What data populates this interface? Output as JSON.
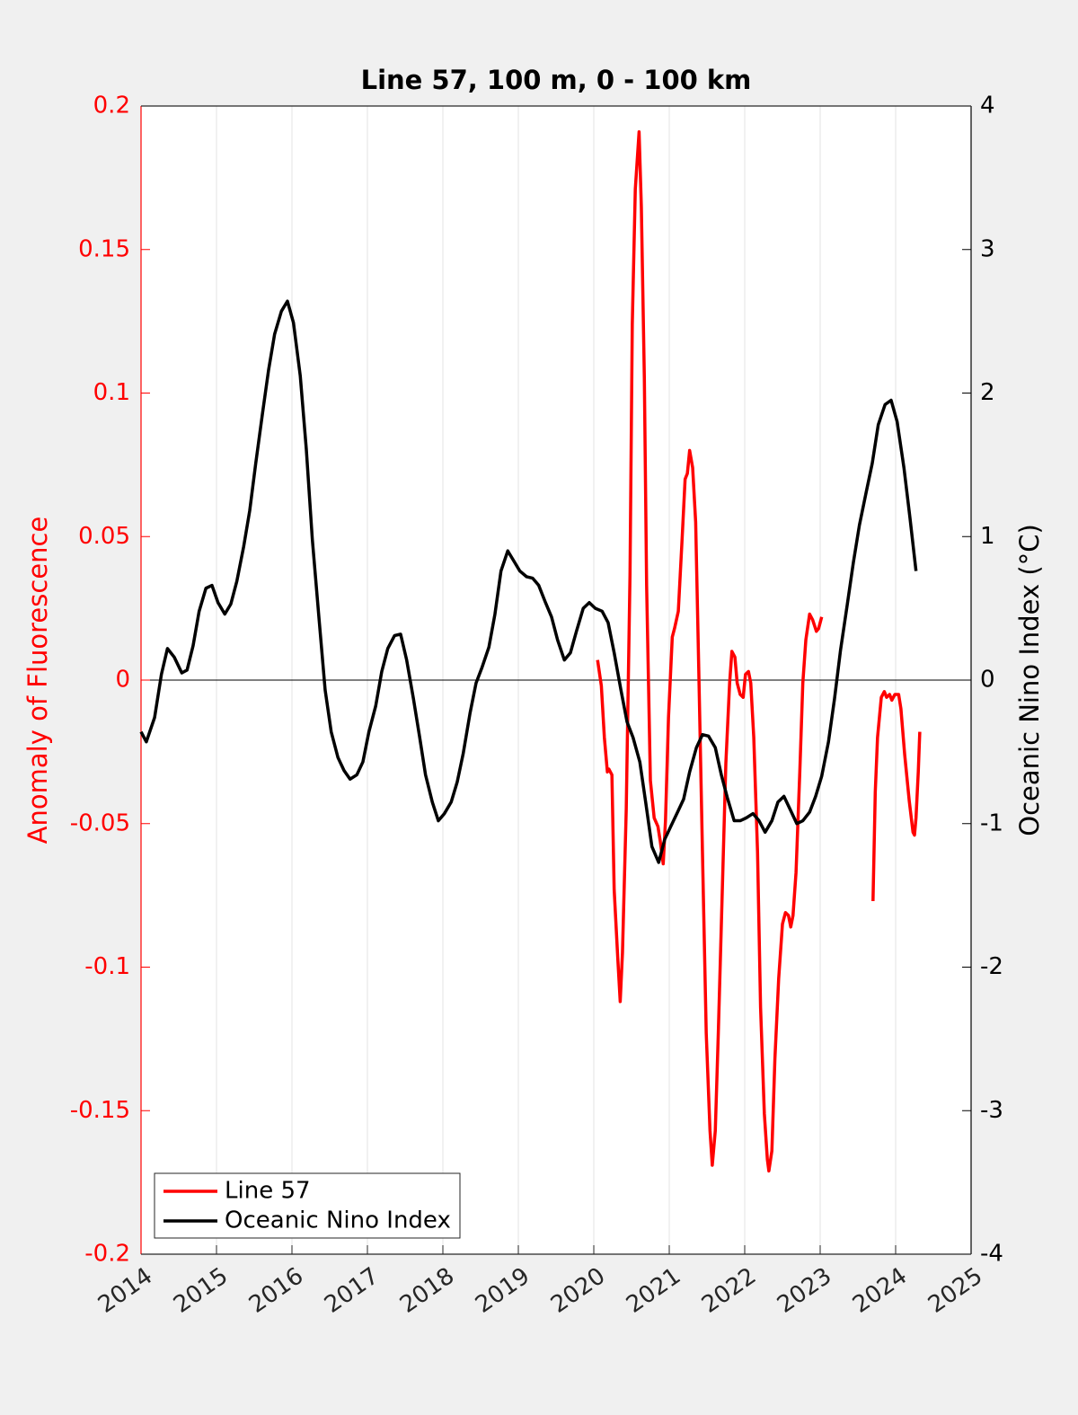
{
  "chart_data": {
    "type": "line",
    "title": "Line 57, 100 m, 0 - 100 km",
    "ylabel": "Anomaly of Fluorescence",
    "y2label": "Oceanic Nino Index (°C)",
    "xlim": [
      2014,
      2025
    ],
    "xticks": [
      2014,
      2015,
      2016,
      2017,
      2018,
      2019,
      2020,
      2021,
      2022,
      2023,
      2024,
      2025
    ],
    "ylim": [
      -0.2,
      0.2
    ],
    "yticks": [
      -0.2,
      -0.15,
      -0.1,
      -0.05,
      0,
      0.05,
      0.1,
      0.15,
      0.2
    ],
    "y2lim": [
      -4,
      4
    ],
    "y2ticks": [
      -4,
      -3,
      -2,
      -1,
      0,
      1,
      2,
      3,
      4
    ],
    "ycolor": "#ff0000",
    "y2color": "#000000",
    "reference_line": 0,
    "xgrid": true,
    "legend": "lower left",
    "series": [
      {
        "name": "Line 57",
        "color": "#ff0000",
        "x": [
          2020.05,
          2020.1,
          2020.14,
          2020.18,
          2020.2,
          2020.24,
          2020.27,
          2020.32,
          2020.35,
          2020.38,
          2020.43,
          2020.48,
          2020.51,
          2020.55,
          2020.6,
          2020.63,
          2020.67,
          2020.7,
          2020.75,
          2020.8,
          2020.85,
          2020.88,
          2020.92,
          2020.95,
          2020.99,
          2021.04,
          2021.07,
          2021.12,
          2021.17,
          2021.21,
          2021.24,
          2021.27,
          2021.31,
          2021.35,
          2021.39,
          2021.44,
          2021.49,
          2021.54,
          2021.57,
          2021.61,
          2021.65,
          2021.7,
          2021.75,
          2021.8,
          2021.83,
          2021.87,
          2021.9,
          2021.94,
          2021.98,
          2022.01,
          2022.05,
          2022.08,
          2022.12,
          2022.17,
          2022.21,
          2022.26,
          2022.3,
          2022.32,
          2022.36,
          2022.4,
          2022.45,
          2022.5,
          2022.54,
          2022.58,
          2022.61,
          2022.64,
          2022.68,
          2022.73,
          2022.77,
          2022.81,
          2022.86,
          2022.9,
          2022.95,
          2022.98,
          2023.02,
          null,
          2023.7,
          2023.73,
          2023.76,
          2023.81,
          2023.85,
          2023.88,
          2023.92,
          2023.95,
          2023.99,
          2024.04,
          2024.07,
          2024.12,
          2024.18,
          2024.23,
          2024.25,
          2024.27,
          2024.3,
          2024.32
        ],
        "values": [
          0.007,
          -0.002,
          -0.02,
          -0.032,
          -0.031,
          -0.033,
          -0.073,
          -0.098,
          -0.112,
          -0.095,
          -0.045,
          0.037,
          0.124,
          0.171,
          0.191,
          0.165,
          0.105,
          0.033,
          -0.035,
          -0.048,
          -0.051,
          -0.056,
          -0.064,
          -0.049,
          -0.013,
          0.015,
          0.018,
          0.024,
          0.049,
          0.07,
          0.072,
          0.08,
          0.074,
          0.055,
          0.005,
          -0.06,
          -0.123,
          -0.157,
          -0.169,
          -0.157,
          -0.123,
          -0.076,
          -0.029,
          -0.001,
          0.01,
          0.008,
          -0.001,
          -0.005,
          -0.006,
          0.002,
          0.003,
          -0.001,
          -0.02,
          -0.06,
          -0.114,
          -0.151,
          -0.167,
          -0.171,
          -0.164,
          -0.132,
          -0.104,
          -0.085,
          -0.081,
          -0.082,
          -0.086,
          -0.082,
          -0.067,
          -0.032,
          -0.001,
          0.014,
          0.023,
          0.021,
          0.017,
          0.018,
          0.022,
          null,
          -0.077,
          -0.039,
          -0.02,
          -0.006,
          -0.004,
          -0.006,
          -0.005,
          -0.007,
          -0.005,
          -0.005,
          -0.01,
          -0.026,
          -0.042,
          -0.053,
          -0.054,
          -0.048,
          -0.032,
          -0.018
        ]
      },
      {
        "name": "Oceanic Nino Index",
        "color": "#000000",
        "axis": "y2",
        "x": [
          2014.0,
          2014.07,
          2014.18,
          2014.27,
          2014.35,
          2014.44,
          2014.54,
          2014.61,
          2014.69,
          2014.77,
          2014.86,
          2014.94,
          2015.02,
          2015.11,
          2015.19,
          2015.27,
          2015.36,
          2015.44,
          2015.52,
          2015.61,
          2015.69,
          2015.77,
          2015.86,
          2015.94,
          2016.02,
          2016.11,
          2016.19,
          2016.27,
          2016.36,
          2016.44,
          2016.52,
          2016.61,
          2016.69,
          2016.77,
          2016.86,
          2016.94,
          2017.02,
          2017.11,
          2017.19,
          2017.27,
          2017.36,
          2017.44,
          2017.52,
          2017.61,
          2017.69,
          2017.77,
          2017.86,
          2017.94,
          2018.02,
          2018.11,
          2018.19,
          2018.27,
          2018.36,
          2018.44,
          2018.52,
          2018.61,
          2018.69,
          2018.77,
          2018.86,
          2018.94,
          2019.02,
          2019.11,
          2019.19,
          2019.27,
          2019.36,
          2019.44,
          2019.52,
          2019.61,
          2019.69,
          2019.77,
          2019.86,
          2019.94,
          2020.02,
          2020.11,
          2020.19,
          2020.27,
          2020.36,
          2020.44,
          2020.52,
          2020.61,
          2020.69,
          2020.77,
          2020.86,
          2020.94,
          2021.02,
          2021.11,
          2021.19,
          2021.27,
          2021.36,
          2021.44,
          2021.52,
          2021.61,
          2021.69,
          2021.77,
          2021.86,
          2021.94,
          2022.02,
          2022.11,
          2022.19,
          2022.27,
          2022.36,
          2022.44,
          2022.52,
          2022.61,
          2022.69,
          2022.77,
          2022.86,
          2022.94,
          2023.02,
          2023.11,
          2023.19,
          2023.27,
          2023.36,
          2023.44,
          2023.52,
          2023.61,
          2023.69,
          2023.77,
          2023.86,
          2023.94,
          2024.02,
          2024.11,
          2024.19,
          2024.27
        ],
        "values": [
          -0.36,
          -0.43,
          -0.26,
          0.04,
          0.22,
          0.16,
          0.05,
          0.07,
          0.24,
          0.48,
          0.64,
          0.66,
          0.54,
          0.46,
          0.53,
          0.69,
          0.93,
          1.18,
          1.51,
          1.86,
          2.16,
          2.41,
          2.57,
          2.64,
          2.49,
          2.12,
          1.61,
          0.98,
          0.42,
          -0.07,
          -0.36,
          -0.54,
          -0.63,
          -0.69,
          -0.66,
          -0.57,
          -0.36,
          -0.18,
          0.06,
          0.22,
          0.31,
          0.32,
          0.14,
          -0.13,
          -0.39,
          -0.66,
          -0.85,
          -0.98,
          -0.93,
          -0.85,
          -0.71,
          -0.51,
          -0.23,
          -0.02,
          0.09,
          0.23,
          0.46,
          0.76,
          0.9,
          0.83,
          0.76,
          0.72,
          0.71,
          0.66,
          0.54,
          0.44,
          0.28,
          0.14,
          0.19,
          0.34,
          0.5,
          0.54,
          0.5,
          0.48,
          0.4,
          0.19,
          -0.07,
          -0.29,
          -0.4,
          -0.57,
          -0.86,
          -1.16,
          -1.27,
          -1.11,
          -1.02,
          -0.92,
          -0.83,
          -0.64,
          -0.47,
          -0.38,
          -0.39,
          -0.47,
          -0.66,
          -0.82,
          -0.98,
          -0.98,
          -0.96,
          -0.93,
          -0.98,
          -1.06,
          -0.98,
          -0.85,
          -0.81,
          -0.91,
          -1.0,
          -0.98,
          -0.92,
          -0.81,
          -0.67,
          -0.43,
          -0.13,
          0.21,
          0.53,
          0.82,
          1.08,
          1.31,
          1.51,
          1.78,
          1.92,
          1.95,
          1.8,
          1.48,
          1.13,
          0.76
        ]
      }
    ]
  }
}
